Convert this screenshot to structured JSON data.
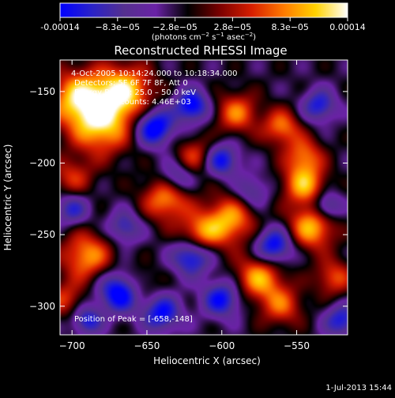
{
  "colorbar": {
    "tick_labels": [
      "-0.00014",
      "−8.3e−05",
      "−2.8e−05",
      "2.8e−05",
      "8.3e−05",
      "0.00014"
    ],
    "unit_parts": {
      "a": "(photons cm",
      "b": "−2",
      "c": " s",
      "d": "−1",
      "e": " asec",
      "f": "−2",
      "g": ")"
    },
    "colors": [
      "#0000ff",
      "#2a22c8",
      "#55308f",
      "#6a22a6",
      "#000000",
      "#7a0000",
      "#d81e00",
      "#ff7a00",
      "#ffd200",
      "#ffffff"
    ]
  },
  "header": {
    "title": "Reconstructed RHESSI Image",
    "info_lines": [
      " 4-Oct-2005 10:14:24.000 to 10:18:34.000",
      "Detectors: 5F 6F 7F 8F, Att 0",
      "Energy Range: 25.0 – 50.0 keV",
      "Clean     Total counts: 4.46E+03"
    ],
    "peak_label": "Position of Peak = [-658,-148]"
  },
  "footer": {
    "date": "1-Jul-2013 15:44"
  },
  "chart_data": {
    "type": "heatmap",
    "title": "Reconstructed RHESSI Image",
    "xlabel": "Heliocentric X (arcsec)",
    "ylabel": "Heliocentric Y (arcsec)",
    "xlim": [
      -708,
      -516
    ],
    "ylim": [
      -320,
      -128
    ],
    "x_ticks": [
      -700,
      -650,
      -600,
      -550
    ],
    "x_tick_labels": [
      "−700",
      "−650",
      "−600",
      "−550"
    ],
    "y_ticks": [
      -300,
      -250,
      -200,
      -150
    ],
    "y_tick_labels": [
      "−300",
      "−250",
      "−200",
      "−150"
    ],
    "colorbar_range": [
      -0.00014,
      0.00014
    ],
    "peak_position": [
      -658,
      -148
    ],
    "sources": [
      [
        -695,
        -155,
        1.0,
        14
      ],
      [
        -665,
        -150,
        1.0,
        13
      ],
      [
        -680,
        -175,
        0.85,
        14
      ],
      [
        -700,
        -210,
        0.5,
        10
      ],
      [
        -590,
        -165,
        0.7,
        10
      ],
      [
        -618,
        -195,
        0.55,
        9
      ],
      [
        -560,
        -175,
        0.7,
        9
      ],
      [
        -545,
        -195,
        0.65,
        9
      ],
      [
        -637,
        -225,
        0.8,
        11
      ],
      [
        -595,
        -240,
        0.85,
        12
      ],
      [
        -615,
        -250,
        0.7,
        10
      ],
      [
        -545,
        -215,
        0.85,
        10
      ],
      [
        -540,
        -245,
        0.9,
        11
      ],
      [
        -690,
        -265,
        0.8,
        12
      ],
      [
        -655,
        -285,
        0.35,
        9
      ],
      [
        -575,
        -280,
        0.85,
        11
      ],
      [
        -560,
        -300,
        0.6,
        10
      ],
      [
        -525,
        -280,
        0.6,
        9
      ],
      [
        -705,
        -295,
        0.5,
        9
      ],
      [
        -645,
        -175,
        -1.0,
        9
      ],
      [
        -620,
        -160,
        -0.9,
        8
      ],
      [
        -600,
        -198,
        -0.8,
        8
      ],
      [
        -630,
        -210,
        -0.6,
        8
      ],
      [
        -700,
        -232,
        -0.6,
        8
      ],
      [
        -665,
        -245,
        -0.6,
        8
      ],
      [
        -668,
        -290,
        -1.0,
        10
      ],
      [
        -640,
        -305,
        -0.8,
        9
      ],
      [
        -565,
        -258,
        -0.9,
        9
      ],
      [
        -535,
        -160,
        -0.7,
        8
      ],
      [
        -600,
        -295,
        -0.8,
        9
      ],
      [
        -520,
        -310,
        -0.7,
        8
      ],
      [
        -530,
        -230,
        -0.7,
        7
      ],
      [
        -620,
        -265,
        -0.9,
        9
      ],
      [
        -580,
        -220,
        -0.5,
        8
      ],
      [
        -690,
        -310,
        -0.7,
        7
      ]
    ]
  }
}
